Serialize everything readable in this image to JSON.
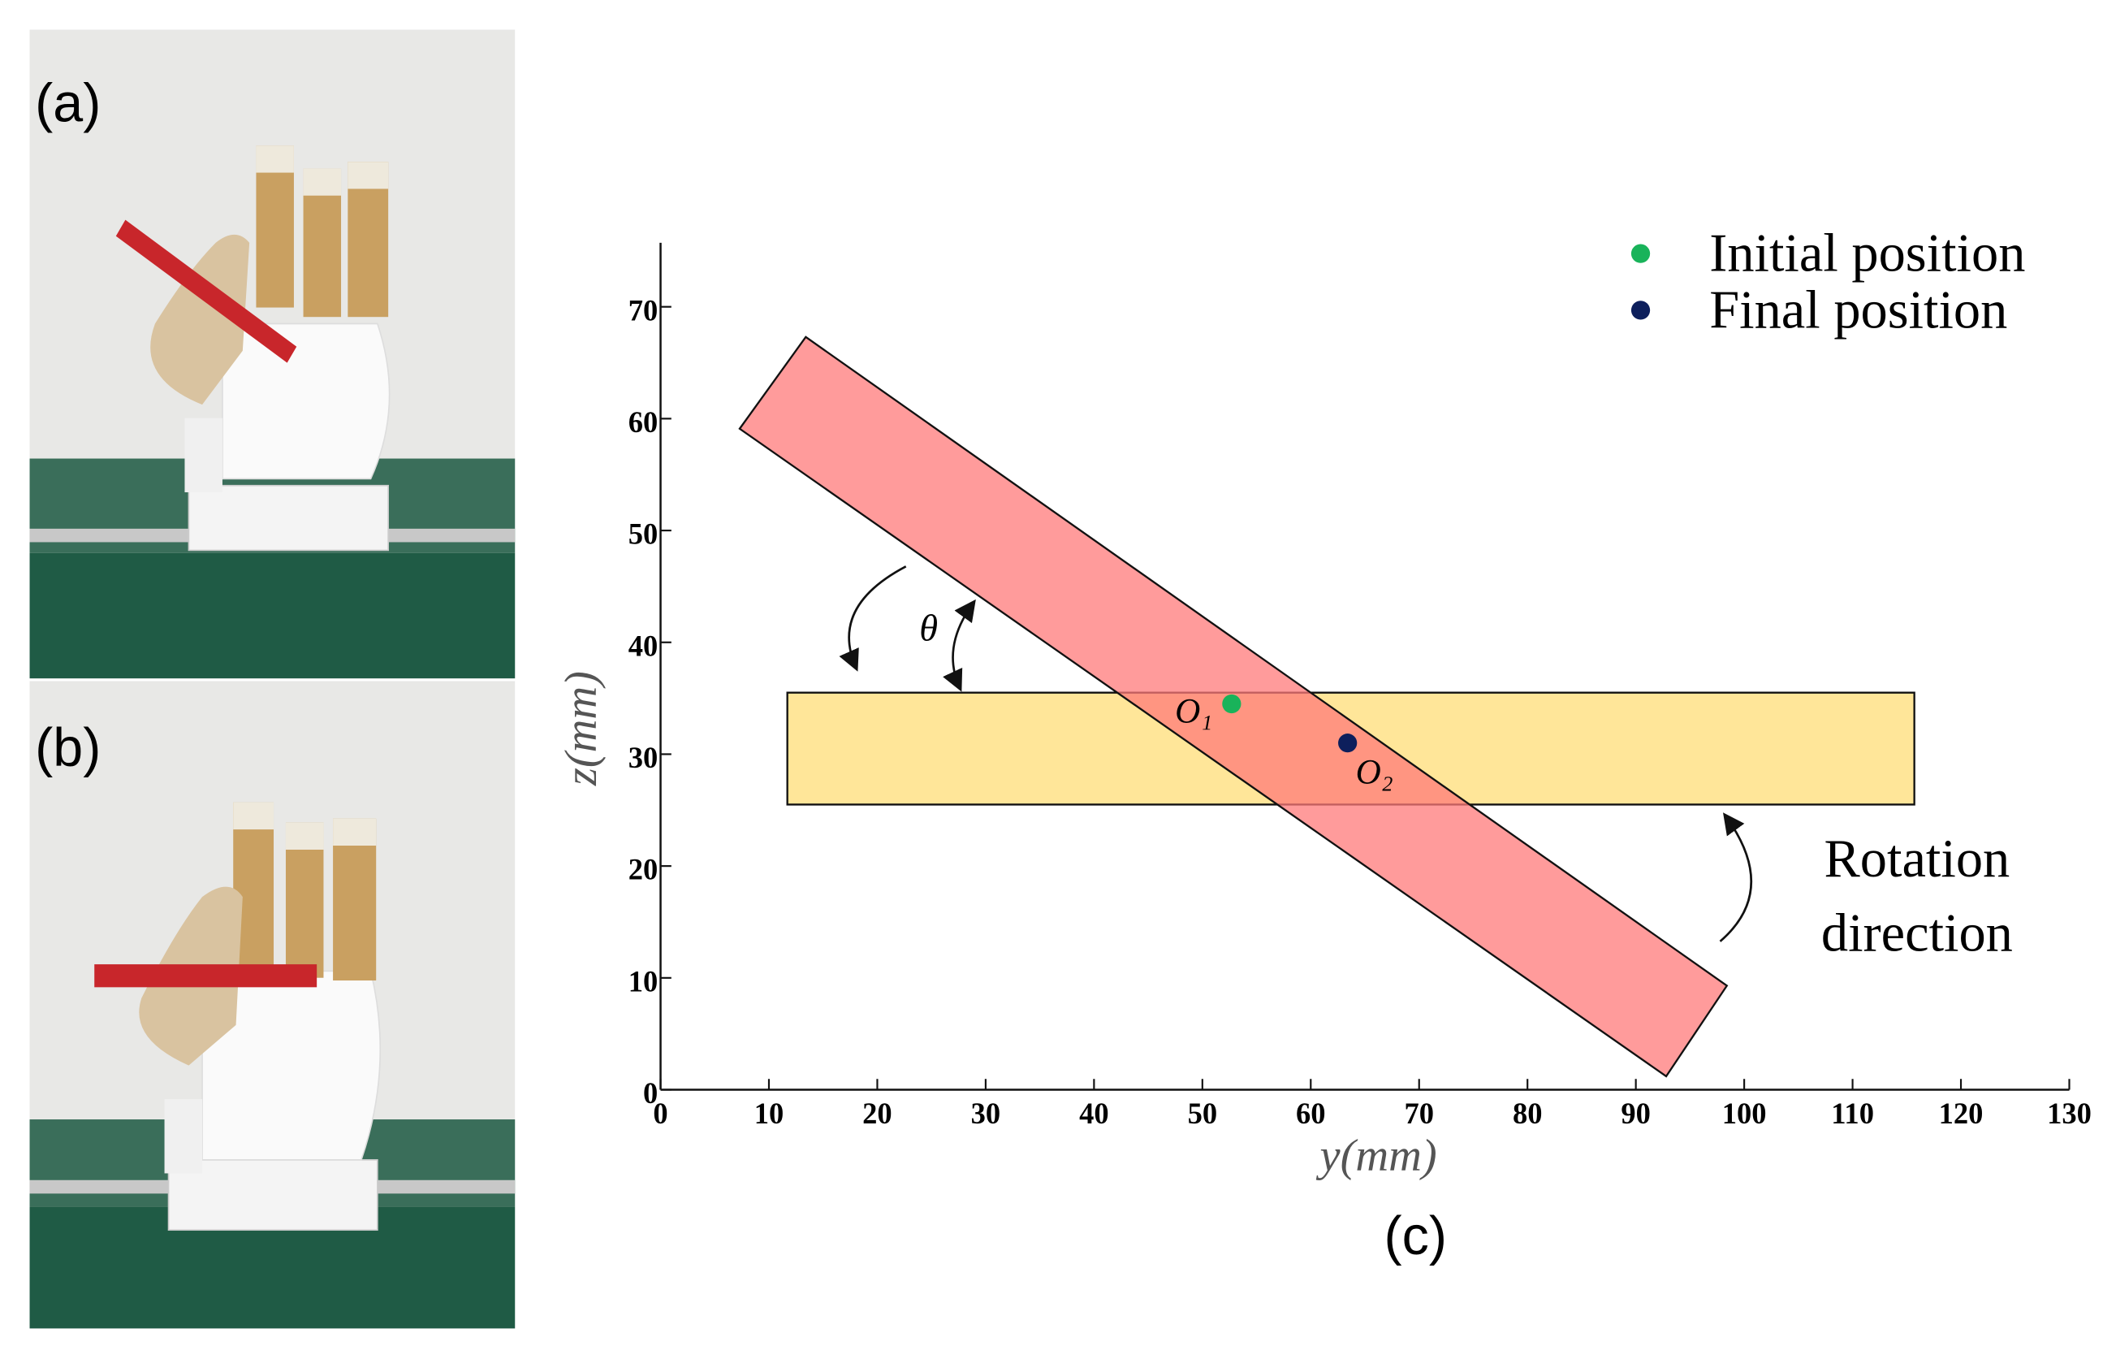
{
  "panel_labels": {
    "a": "(a)",
    "b": "(b)",
    "c": "(c)"
  },
  "chart_data": {
    "type": "scatter",
    "x_label": "y(mm)",
    "y_label": "z(mm)",
    "xlim": [
      0,
      130
    ],
    "ylim": [
      0,
      75
    ],
    "xticks": [
      0,
      10,
      20,
      30,
      40,
      50,
      60,
      70,
      80,
      90,
      100,
      110,
      120,
      130
    ],
    "yticks": [
      0,
      10,
      20,
      30,
      40,
      50,
      60,
      70
    ],
    "legend": "upper right",
    "shapes": [
      {
        "color": "#ffe699",
        "x": [
          11.7,
          115.7,
          115.7,
          11.7
        ],
        "y": [
          35.5,
          35.5,
          25.5,
          25.5
        ]
      },
      {
        "color": "#ff7a7a",
        "x": [
          13.4,
          98.4,
          92.8,
          7.3
        ],
        "y": [
          67.3,
          9.3,
          1.2,
          59.1
        ]
      }
    ],
    "series": [
      {
        "name": "Initial position",
        "color": "#19b35a",
        "x": [
          52.7
        ],
        "values": [
          34.5
        ],
        "label": "O₁"
      },
      {
        "name": "Final position",
        "color": "#0d1f5c",
        "x": [
          63.4
        ],
        "values": [
          31.0
        ],
        "label": "O₂"
      }
    ],
    "annotations": {
      "angle": "θ",
      "rotation": [
        "Rotation",
        "direction"
      ]
    }
  }
}
